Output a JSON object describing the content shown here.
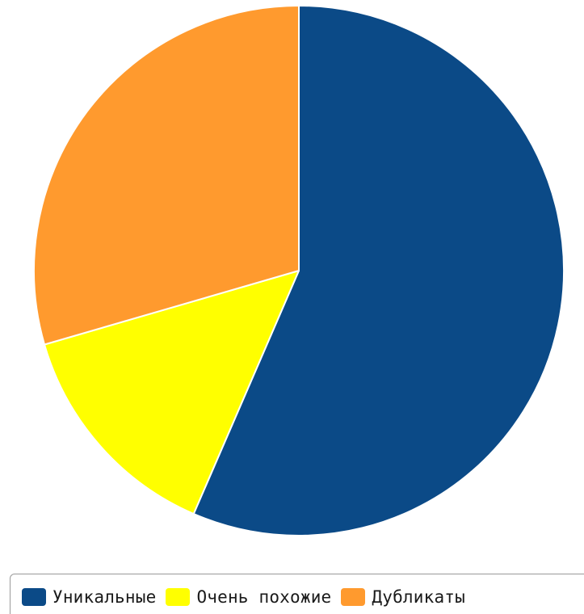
{
  "chart_data": {
    "type": "pie",
    "title": "",
    "legend_position": "bottom",
    "start_angle_deg": 0,
    "direction": "clockwise",
    "slices": [
      {
        "label": "Уникальные",
        "value": 56.5,
        "color": "#0b4a87"
      },
      {
        "label": "Очень похожие",
        "value": 14.0,
        "color": "#ffff00"
      },
      {
        "label": "Дубликаты",
        "value": 29.5,
        "color": "#ff9a2e"
      }
    ]
  }
}
